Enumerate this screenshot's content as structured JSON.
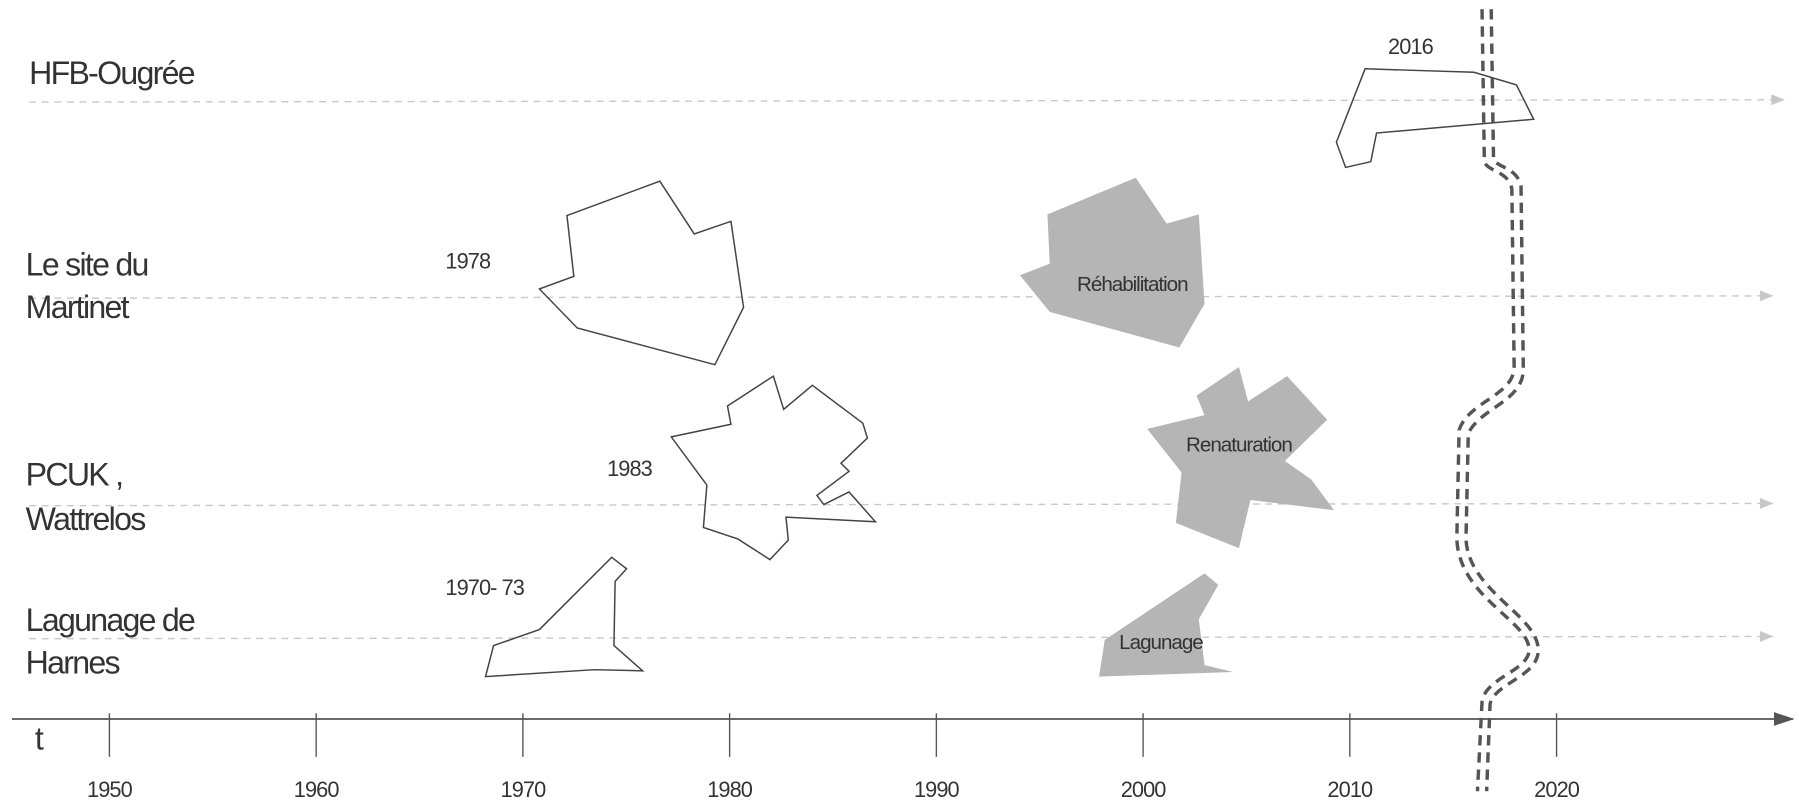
{
  "rows": [
    {
      "lines": [
        "HFB-Ougrée"
      ]
    },
    {
      "lines": [
        "Le site du",
        "Martinet"
      ]
    },
    {
      "lines": [
        "PCUK ,",
        "Wattrelos"
      ]
    },
    {
      "lines": [
        "Lagunage de",
        "Harnes"
      ]
    }
  ],
  "axis_label": "t",
  "ticks": [
    1950,
    1960,
    1970,
    1980,
    1990,
    2000,
    2010,
    2020
  ],
  "annotations": [
    "2016",
    "1978",
    "1983",
    "1970- 73"
  ],
  "phases": [
    "Réhabilitation",
    "Renaturation",
    "Lagunage"
  ]
}
